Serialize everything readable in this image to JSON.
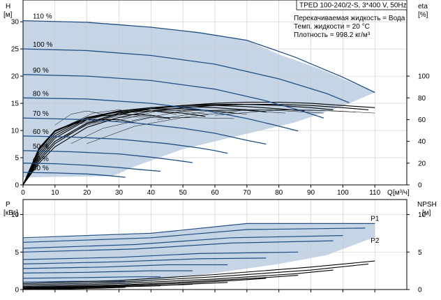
{
  "chart_data": [
    {
      "type": "line",
      "panel": "head_efficiency",
      "title": "TPED 100-240/2-S, 3*400 V, 50Hz",
      "notes": [
        "Перекачиваемая жидкость = Вода",
        "Темп. жидкости = 20 °C",
        "Плотность = 998.2 кг/м³"
      ],
      "ylabel": "H",
      "yunit": "[м]",
      "y2label": "eta",
      "y2unit": "[%]",
      "xlabel": "Q",
      "xunit": "[м³/ч]",
      "xlim": [
        0,
        120
      ],
      "ylim": [
        0,
        34
      ],
      "y2lim": [
        0,
        170
      ],
      "xticks": [
        0,
        10,
        20,
        30,
        40,
        50,
        60,
        70,
        80,
        90,
        100,
        110
      ],
      "yticks": [
        0,
        5,
        10,
        15,
        20,
        25,
        30
      ],
      "y2ticks": [
        0,
        20,
        40,
        60,
        80,
        100
      ],
      "grid": true,
      "colors": {
        "head": "#1f4e84",
        "area": "#c5d5e6",
        "eta": "#000000",
        "grid": "#c8c8c8"
      },
      "operating_area": [
        [
          0,
          30.2
        ],
        [
          30,
          29.6
        ],
        [
          55,
          28
        ],
        [
          70,
          26.6
        ],
        [
          80,
          24
        ],
        [
          92,
          21.5
        ],
        [
          102,
          19
        ],
        [
          110,
          17
        ],
        [
          100,
          14.5
        ],
        [
          85,
          11.5
        ],
        [
          70,
          9.4
        ],
        [
          50,
          6.6
        ],
        [
          35,
          3.4
        ],
        [
          28,
          1.6
        ],
        [
          0,
          1.4
        ]
      ],
      "series": [
        {
          "name": "110 %",
          "x": [
            0,
            20,
            40,
            55,
            70,
            85,
            100,
            110
          ],
          "y": [
            30.2,
            29.9,
            29,
            28,
            26.6,
            23.5,
            19.8,
            17
          ]
        },
        {
          "name": "100 %",
          "x": [
            0,
            20,
            40,
            60,
            80,
            95,
            102
          ],
          "y": [
            25,
            24.7,
            23.8,
            22.2,
            19.5,
            16.8,
            15.1
          ]
        },
        {
          "name": "90 %",
          "x": [
            0,
            20,
            40,
            60,
            75,
            86,
            94
          ],
          "y": [
            20.3,
            20,
            19.2,
            17.6,
            15.6,
            13.8,
            12.3
          ]
        },
        {
          "name": "80 %",
          "x": [
            0,
            20,
            40,
            55,
            70,
            78,
            86
          ],
          "y": [
            16,
            15.8,
            15,
            13.9,
            12.2,
            11.1,
            9.9
          ]
        },
        {
          "name": "70 %",
          "x": [
            0,
            20,
            35,
            50,
            60,
            70,
            76
          ],
          "y": [
            12.3,
            12,
            11.4,
            10.4,
            9.5,
            8.2,
            7.5
          ]
        },
        {
          "name": "60 %",
          "x": [
            0,
            15,
            30,
            45,
            55,
            60,
            64
          ],
          "y": [
            9,
            8.8,
            8.4,
            7.6,
            6.8,
            6.3,
            5.8
          ]
        },
        {
          "name": "50 %",
          "x": [
            0,
            15,
            30,
            40,
            48,
            53
          ],
          "y": [
            6.3,
            6.1,
            5.7,
            5.1,
            4.5,
            4.1
          ]
        },
        {
          "name": "40 %",
          "x": [
            0,
            10,
            20,
            30,
            37,
            43
          ],
          "y": [
            4,
            3.9,
            3.6,
            3.2,
            2.8,
            2.5
          ]
        },
        {
          "name": "30 %",
          "x": [
            0,
            10,
            20,
            27,
            32
          ],
          "y": [
            2.3,
            2.2,
            2,
            1.7,
            1.4
          ]
        }
      ],
      "eta_series": [
        {
          "x": [
            0,
            5,
            10,
            20,
            30,
            40,
            50,
            60,
            70,
            80,
            90,
            100,
            110
          ],
          "y": [
            0,
            22,
            38,
            56,
            65,
            70,
            73,
            75,
            76,
            76,
            75,
            73,
            71
          ]
        },
        {
          "x": [
            0,
            5,
            10,
            20,
            30,
            40,
            50,
            60,
            70,
            80,
            90,
            100,
            108
          ],
          "y": [
            0,
            20,
            35,
            53,
            62,
            68,
            71,
            73,
            74,
            74,
            73,
            71,
            69
          ]
        },
        {
          "x": [
            0,
            5,
            10,
            20,
            30,
            40,
            50,
            60,
            70,
            80,
            90,
            97
          ],
          "y": [
            0,
            24,
            40,
            57,
            66,
            70,
            73,
            74,
            74,
            73,
            71,
            69
          ]
        },
        {
          "x": [
            0,
            5,
            10,
            20,
            30,
            40,
            50,
            60,
            70,
            80,
            88
          ],
          "y": [
            0,
            26,
            43,
            60,
            68,
            71,
            73,
            73,
            72,
            70,
            68
          ]
        },
        {
          "x": [
            0,
            5,
            10,
            20,
            30,
            40,
            50,
            60,
            70,
            76
          ],
          "y": [
            0,
            28,
            45,
            61,
            68,
            71,
            72,
            71,
            69,
            67
          ]
        },
        {
          "x": [
            0,
            5,
            10,
            20,
            30,
            40,
            50,
            60,
            66
          ],
          "y": [
            0,
            30,
            47,
            62,
            68,
            70,
            70,
            68,
            66
          ]
        },
        {
          "x": [
            0,
            5,
            10,
            20,
            30,
            40,
            50,
            57
          ],
          "y": [
            0,
            32,
            49,
            62,
            67,
            68,
            66,
            63
          ]
        },
        {
          "x": [
            0,
            5,
            10,
            20,
            30,
            40,
            46
          ],
          "y": [
            0,
            33,
            50,
            62,
            65,
            64,
            61
          ]
        },
        {
          "x": [
            0,
            5,
            10,
            20,
            30,
            35
          ],
          "y": [
            0,
            34,
            50,
            60,
            60,
            57
          ]
        }
      ],
      "eta_thin": [
        {
          "x": [
            10,
            15,
            20,
            25
          ],
          "y": [
            55,
            65,
            68,
            65
          ]
        },
        {
          "x": [
            14,
            22,
            30,
            38
          ],
          "y": [
            55,
            66,
            69,
            65
          ]
        },
        {
          "x": [
            18,
            28,
            38,
            48
          ],
          "y": [
            56,
            67,
            69,
            65
          ]
        },
        {
          "x": [
            22,
            34,
            46,
            58
          ],
          "y": [
            57,
            67,
            69,
            65
          ]
        },
        {
          "x": [
            28,
            42,
            56,
            70
          ],
          "y": [
            58,
            68,
            69,
            65
          ]
        },
        {
          "x": [
            34,
            50,
            66,
            82
          ],
          "y": [
            59,
            68,
            69,
            66
          ]
        },
        {
          "x": [
            42,
            58,
            76,
            94
          ],
          "y": [
            60,
            68,
            69,
            66
          ]
        },
        {
          "x": [
            50,
            70,
            88,
            104
          ],
          "y": [
            62,
            69,
            69,
            67
          ]
        },
        {
          "x": [
            60,
            80,
            98,
            110
          ],
          "y": [
            64,
            69,
            68,
            66
          ]
        },
        {
          "x": [
            10,
            20,
            30,
            40
          ],
          "y": [
            40,
            55,
            62,
            63
          ]
        },
        {
          "x": [
            15,
            25,
            40,
            52
          ],
          "y": [
            38,
            52,
            62,
            62
          ]
        },
        {
          "x": [
            20,
            35,
            50,
            66
          ],
          "y": [
            38,
            54,
            62,
            61
          ]
        }
      ]
    },
    {
      "type": "line",
      "panel": "power_npsh",
      "ylabel": "P",
      "yunit": "[кВт]",
      "y2label": "NPSH",
      "y2unit": "[м]",
      "xlim": [
        0,
        120
      ],
      "ylim": [
        0,
        12
      ],
      "y2lim": [
        0,
        12
      ],
      "yticks": [
        0,
        5,
        10
      ],
      "y2ticks": [
        0,
        5,
        10
      ],
      "grid": true,
      "colors": {
        "p1": "#1f4e84",
        "npsh": "#000000",
        "area": "#c5d5e6"
      },
      "p1_label": "P1",
      "p2_label": "P2",
      "operating_area": [
        [
          0,
          6.8
        ],
        [
          40,
          7.4
        ],
        [
          70,
          8.8
        ],
        [
          110,
          8.8
        ],
        [
          110,
          7
        ],
        [
          95,
          4.6
        ],
        [
          80,
          3.4
        ],
        [
          60,
          2.2
        ],
        [
          40,
          1.2
        ],
        [
          28,
          0.4
        ],
        [
          0,
          0.4
        ]
      ],
      "power_series": [
        {
          "x": [
            0,
            40,
            70,
            110
          ],
          "y": [
            6.9,
            7.5,
            8.8,
            8.8
          ]
        },
        {
          "x": [
            0,
            40,
            70,
            107
          ],
          "y": [
            6.3,
            6.9,
            8,
            8.2
          ]
        },
        {
          "x": [
            0,
            35,
            65,
            100
          ],
          "y": [
            5.5,
            6,
            6.9,
            7.2
          ]
        },
        {
          "x": [
            0,
            35,
            65,
            97
          ],
          "y": [
            5,
            5.4,
            6.2,
            6.5
          ]
        },
        {
          "x": [
            0,
            30,
            55,
            86
          ],
          "y": [
            4,
            4.3,
            4.8,
            5
          ]
        },
        {
          "x": [
            0,
            30,
            55,
            76
          ],
          "y": [
            3.4,
            3.7,
            4.1,
            4.2
          ]
        },
        {
          "x": [
            0,
            25,
            45,
            64
          ],
          "y": [
            2.8,
            3,
            3.3,
            3.3
          ]
        },
        {
          "x": [
            0,
            20,
            40,
            53
          ],
          "y": [
            2.2,
            2.3,
            2.5,
            2.5
          ]
        },
        {
          "x": [
            0,
            20,
            35,
            43
          ],
          "y": [
            1.5,
            1.6,
            1.7,
            1.7
          ]
        },
        {
          "x": [
            0,
            15,
            25,
            32
          ],
          "y": [
            1,
            1.1,
            1.1,
            1.1
          ]
        }
      ],
      "npsh_series": [
        {
          "x": [
            0,
            30,
            60,
            90,
            110
          ],
          "y": [
            0.8,
            1.2,
            2,
            3,
            3.8
          ]
        },
        {
          "x": [
            0,
            30,
            60,
            90,
            108
          ],
          "y": [
            0.6,
            1,
            1.7,
            2.6,
            3.4
          ]
        },
        {
          "x": [
            0,
            30,
            60,
            85,
            97
          ],
          "y": [
            0.4,
            0.8,
            1.4,
            2.1,
            2.6
          ]
        },
        {
          "x": [
            0,
            30,
            55,
            76,
            86
          ],
          "y": [
            0.3,
            0.6,
            1.1,
            1.6,
            1.9
          ]
        },
        {
          "x": [
            0,
            25,
            50,
            66,
            76
          ],
          "y": [
            0.25,
            0.45,
            0.85,
            1.2,
            1.5
          ]
        },
        {
          "x": [
            0,
            25,
            45,
            64
          ],
          "y": [
            0.2,
            0.35,
            0.6,
            0.95
          ]
        },
        {
          "x": [
            0,
            20,
            40,
            53
          ],
          "y": [
            0.15,
            0.3,
            0.5,
            0.7
          ]
        },
        {
          "x": [
            0,
            15,
            30,
            43
          ],
          "y": [
            0.1,
            0.2,
            0.35,
            0.5
          ]
        },
        {
          "x": [
            0,
            15,
            25,
            32
          ],
          "y": [
            0.05,
            0.1,
            0.2,
            0.3
          ]
        }
      ]
    }
  ]
}
